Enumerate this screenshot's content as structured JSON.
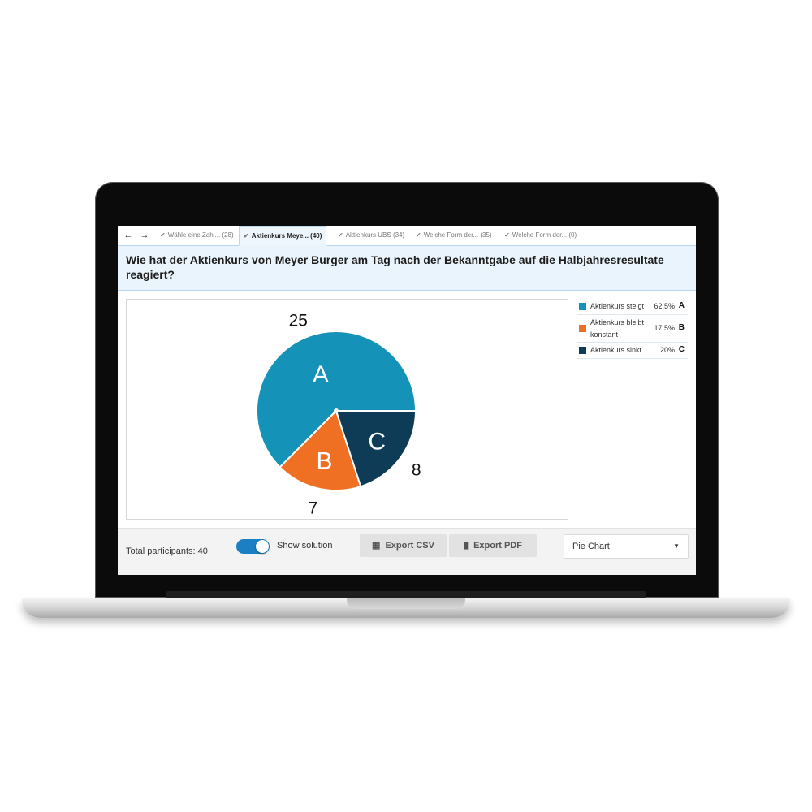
{
  "tabs": {
    "back_icon": "arrow-left-icon",
    "forward_icon": "arrow-right-icon",
    "items": [
      {
        "label": "Wähle eine Zahl... (28)",
        "active": false
      },
      {
        "label": "Aktienkurs Meye... (40)",
        "active": true
      },
      {
        "label": "Aktienkurs UBS (34)",
        "active": false
      },
      {
        "label": "Welche Form der... (35)",
        "active": false
      },
      {
        "label": "Welche Form der... (0)",
        "active": false
      }
    ]
  },
  "question": {
    "text": "Wie hat der Aktienkurs von Meyer Burger am Tag nach der Bekanntgabe auf die Halbjahresresultate reagiert?"
  },
  "chart_data": {
    "type": "pie",
    "slices": [
      {
        "label": "A",
        "name": "Aktienkurs steigt",
        "value": 25,
        "percent": "62.5%",
        "color": "#1592b8"
      },
      {
        "label": "B",
        "name": "Aktienkurs bleibt konstant",
        "value": 7,
        "percent": "17.5%",
        "color": "#f07023"
      },
      {
        "label": "C",
        "name": "Aktienkurs sinkt",
        "value": 8,
        "percent": "20%",
        "color": "#0e3b55"
      }
    ],
    "legend_position": "right"
  },
  "footer": {
    "total_participants": "Total participants: 40",
    "show_solution_label": "Show solution",
    "show_solution_on": true,
    "export_csv_label": "Export CSV",
    "export_pdf_label": "Export PDF",
    "chart_type_selected": "Pie Chart"
  },
  "colors": {
    "accent": "#1c7fc3",
    "question_bg": "#eaf4fc"
  }
}
